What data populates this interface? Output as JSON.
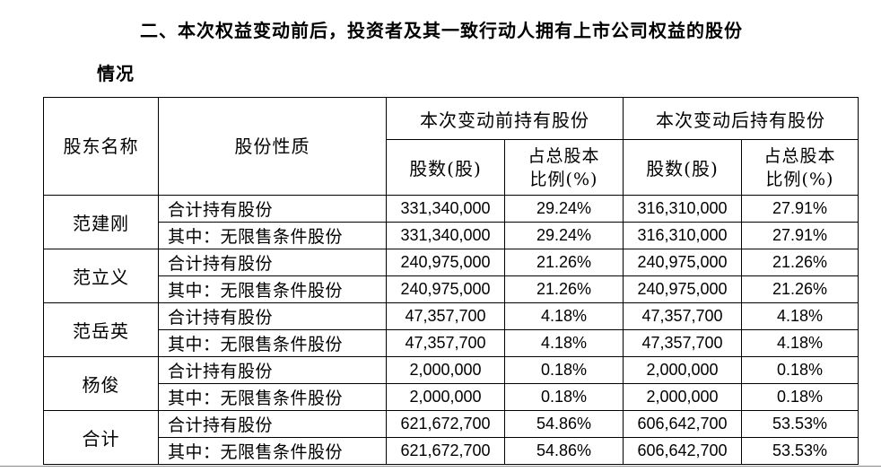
{
  "heading": {
    "line1": "二、本次权益变动前后，投资者及其一致行动人拥有上市公司权益的股份",
    "line2": "情况"
  },
  "table": {
    "col_shareholder": "股东名称",
    "col_nature": "股份性质",
    "group_before": "本次变动前持有股份",
    "group_after": "本次变动后持有股份",
    "sub_shares": "股数(股)",
    "sub_ratio_l1": "占总股本",
    "sub_ratio_l2": "比例(%)",
    "shareholders": [
      {
        "name": "范建刚",
        "rows": [
          {
            "nature": "合计持有股份",
            "before_shares": "331,340,000",
            "before_ratio": "29.24%",
            "after_shares": "316,310,000",
            "after_ratio": "27.91%"
          },
          {
            "nature": "其中：无限售条件股份",
            "before_shares": "331,340,000",
            "before_ratio": "29.24%",
            "after_shares": "316,310,000",
            "after_ratio": "27.91%"
          }
        ]
      },
      {
        "name": "范立义",
        "rows": [
          {
            "nature": "合计持有股份",
            "before_shares": "240,975,000",
            "before_ratio": "21.26%",
            "after_shares": "240,975,000",
            "after_ratio": "21.26%"
          },
          {
            "nature": "其中：无限售条件股份",
            "before_shares": "240,975,000",
            "before_ratio": "21.26%",
            "after_shares": "240,975,000",
            "after_ratio": "21.26%"
          }
        ]
      },
      {
        "name": "范岳英",
        "rows": [
          {
            "nature": "合计持有股份",
            "before_shares": "47,357,700",
            "before_ratio": "4.18%",
            "after_shares": "47,357,700",
            "after_ratio": "4.18%"
          },
          {
            "nature": "其中：无限售条件股份",
            "before_shares": "47,357,700",
            "before_ratio": "4.18%",
            "after_shares": "47,357,700",
            "after_ratio": "4.18%"
          }
        ]
      },
      {
        "name": "杨俊",
        "rows": [
          {
            "nature": "合计持有股份",
            "before_shares": "2,000,000",
            "before_ratio": "0.18%",
            "after_shares": "2,000,000",
            "after_ratio": "0.18%"
          },
          {
            "nature": "其中：无限售条件股份",
            "before_shares": "2,000,000",
            "before_ratio": "0.18%",
            "after_shares": "2,000,000",
            "after_ratio": "0.18%"
          }
        ]
      },
      {
        "name": "合计",
        "rows": [
          {
            "nature": "合计持有股份",
            "before_shares": "621,672,700",
            "before_ratio": "54.86%",
            "after_shares": "606,642,700",
            "after_ratio": "53.53%"
          },
          {
            "nature": "其中：无限售条件股份",
            "before_shares": "621,672,700",
            "before_ratio": "54.86%",
            "after_shares": "606,642,700",
            "after_ratio": "53.53%"
          }
        ]
      }
    ]
  }
}
